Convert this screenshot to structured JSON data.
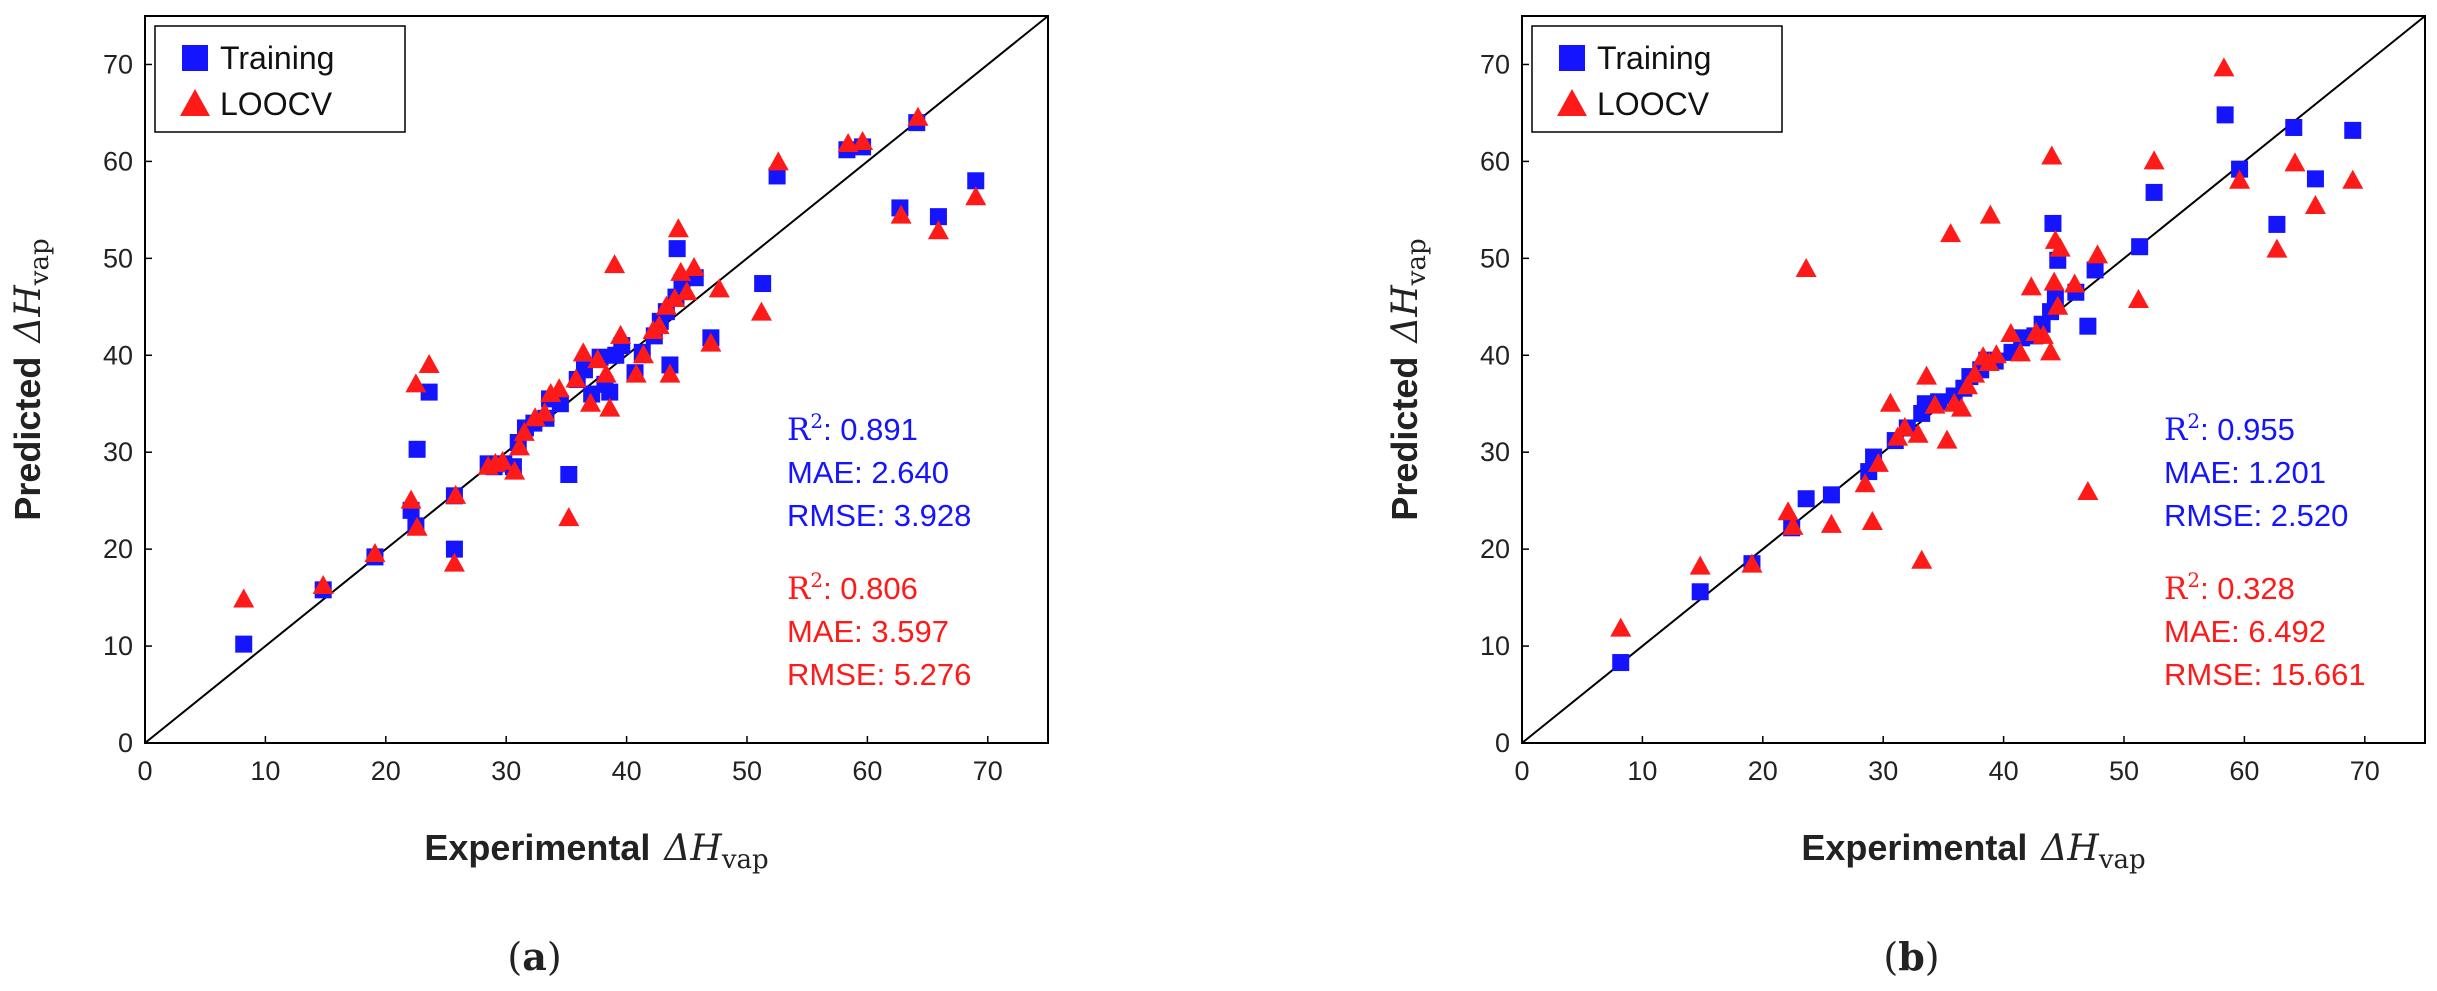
{
  "chart_data": [
    {
      "type": "scatter",
      "panel_label": {
        "open": "(",
        "letter": "a",
        "close": ")"
      },
      "xlabel": {
        "bold": "Experimental",
        "delta": "ΔH",
        "sub": "vap"
      },
      "ylabel": {
        "bold": "Predicted",
        "delta": "ΔH",
        "sub": "vap"
      },
      "xlim": [
        0,
        75
      ],
      "ylim": [
        0,
        75
      ],
      "xticks": [
        "0",
        "10",
        "20",
        "30",
        "40",
        "50",
        "60",
        "70"
      ],
      "yticks": [
        "0",
        "10",
        "20",
        "30",
        "40",
        "50",
        "60",
        "70"
      ],
      "diagonal_line": true,
      "grid": false,
      "legend_position": "top-left",
      "legend": [
        {
          "label": "Training",
          "marker": "square",
          "color": "#1414ff"
        },
        {
          "label": "LOOCV",
          "marker": "triangle",
          "color": "#ff1a1a"
        }
      ],
      "metrics": [
        {
          "color": "#1414ff",
          "r2": ": 0.891",
          "mae": "MAE: 2.640",
          "rmse": "RMSE: 3.928"
        },
        {
          "color": "#ff1a1a",
          "r2": ": 0.806",
          "mae": "MAE: 3.597",
          "rmse": "RMSE: 5.276"
        }
      ],
      "series": [
        {
          "name": "Training",
          "marker": "square",
          "color": "#1414ff",
          "points": [
            [
              8.2,
              10.2
            ],
            [
              14.8,
              15.8
            ],
            [
              19.1,
              19.2
            ],
            [
              22.1,
              24.0
            ],
            [
              22.6,
              30.3
            ],
            [
              22.5,
              22.4
            ],
            [
              23.6,
              36.2
            ],
            [
              25.7,
              20.0
            ],
            [
              25.7,
              25.5
            ],
            [
              28.5,
              28.8
            ],
            [
              29.0,
              28.5
            ],
            [
              29.8,
              28.8
            ],
            [
              30.6,
              28.5
            ],
            [
              31.0,
              31.0
            ],
            [
              31.6,
              32.5
            ],
            [
              32.3,
              33.0
            ],
            [
              33.3,
              33.5
            ],
            [
              33.6,
              35.5
            ],
            [
              34.5,
              35.0
            ],
            [
              35.2,
              27.7
            ],
            [
              35.9,
              37.5
            ],
            [
              36.5,
              38.5
            ],
            [
              37.1,
              36.0
            ],
            [
              37.8,
              39.8
            ],
            [
              38.2,
              37.0
            ],
            [
              38.6,
              36.2
            ],
            [
              39.1,
              40.0
            ],
            [
              39.6,
              41.0
            ],
            [
              40.7,
              38.2
            ],
            [
              41.3,
              40.3
            ],
            [
              42.3,
              42.0
            ],
            [
              42.8,
              43.5
            ],
            [
              43.3,
              44.5
            ],
            [
              43.6,
              39.0
            ],
            [
              44.1,
              46.0
            ],
            [
              44.2,
              51.0
            ],
            [
              44.6,
              47.5
            ],
            [
              45.7,
              48.0
            ],
            [
              47.0,
              41.8
            ],
            [
              51.3,
              47.4
            ],
            [
              52.5,
              58.5
            ],
            [
              58.3,
              61.2
            ],
            [
              59.6,
              61.5
            ],
            [
              62.7,
              55.2
            ],
            [
              64.1,
              64.0
            ],
            [
              65.9,
              54.3
            ],
            [
              69.0,
              58.0
            ]
          ]
        },
        {
          "name": "LOOCV",
          "marker": "triangle",
          "color": "#ff1a1a",
          "points": [
            [
              8.2,
              14.8
            ],
            [
              14.8,
              16.2
            ],
            [
              19.1,
              19.5
            ],
            [
              22.1,
              25.0
            ],
            [
              22.5,
              37.0
            ],
            [
              22.6,
              22.2
            ],
            [
              23.6,
              39.0
            ],
            [
              25.7,
              18.5
            ],
            [
              25.8,
              25.5
            ],
            [
              28.5,
              28.5
            ],
            [
              29.1,
              28.8
            ],
            [
              29.7,
              29.0
            ],
            [
              30.7,
              28.0
            ],
            [
              31.1,
              30.5
            ],
            [
              31.5,
              32.0
            ],
            [
              32.4,
              33.5
            ],
            [
              33.2,
              34.0
            ],
            [
              33.7,
              36.0
            ],
            [
              34.4,
              36.5
            ],
            [
              35.2,
              23.2
            ],
            [
              35.8,
              37.5
            ],
            [
              36.4,
              40.2
            ],
            [
              37.0,
              35.0
            ],
            [
              37.6,
              39.5
            ],
            [
              38.3,
              38.0
            ],
            [
              38.6,
              34.5
            ],
            [
              39.0,
              49.3
            ],
            [
              39.5,
              42.0
            ],
            [
              40.8,
              38.0
            ],
            [
              41.4,
              40.0
            ],
            [
              42.2,
              42.5
            ],
            [
              42.7,
              43.0
            ],
            [
              43.3,
              45.0
            ],
            [
              43.6,
              38.0
            ],
            [
              44.0,
              45.8
            ],
            [
              44.3,
              53.0
            ],
            [
              44.5,
              48.5
            ],
            [
              45.0,
              46.5
            ],
            [
              45.6,
              49.0
            ],
            [
              47.0,
              41.2
            ],
            [
              47.7,
              46.8
            ],
            [
              51.2,
              44.4
            ],
            [
              52.6,
              59.9
            ],
            [
              58.4,
              61.8
            ],
            [
              59.6,
              62.0
            ],
            [
              62.8,
              54.4
            ],
            [
              64.2,
              64.5
            ],
            [
              65.9,
              52.8
            ],
            [
              69.0,
              56.3
            ]
          ]
        }
      ]
    },
    {
      "type": "scatter",
      "panel_label": {
        "open": "(",
        "letter": "b",
        "close": ")"
      },
      "xlabel": {
        "bold": "Experimental",
        "delta": "ΔH",
        "sub": "vap"
      },
      "ylabel": {
        "bold": "Predicted",
        "delta": "ΔH",
        "sub": "vap"
      },
      "xlim": [
        0,
        75
      ],
      "ylim": [
        0,
        75
      ],
      "xticks": [
        "0",
        "10",
        "20",
        "30",
        "40",
        "50",
        "60",
        "70"
      ],
      "yticks": [
        "0",
        "10",
        "20",
        "30",
        "40",
        "50",
        "60",
        "70"
      ],
      "diagonal_line": true,
      "grid": false,
      "legend_position": "top-left",
      "legend": [
        {
          "label": "Training",
          "marker": "square",
          "color": "#1414ff"
        },
        {
          "label": "LOOCV",
          "marker": "triangle",
          "color": "#ff1a1a"
        }
      ],
      "metrics": [
        {
          "color": "#1414ff",
          "r2": ": 0.955",
          "mae": "MAE: 1.201",
          "rmse": "RMSE: 2.520"
        },
        {
          "color": "#ff1a1a",
          "r2": ": 0.328",
          "mae": "MAE: 6.492",
          "rmse": "RMSE: 15.661"
        }
      ],
      "series": [
        {
          "name": "Training",
          "marker": "square",
          "color": "#1414ff",
          "points": [
            [
              8.2,
              8.3
            ],
            [
              14.8,
              15.6
            ],
            [
              19.1,
              18.5
            ],
            [
              22.4,
              22.2
            ],
            [
              23.6,
              25.2
            ],
            [
              25.7,
              25.6
            ],
            [
              28.8,
              28.0
            ],
            [
              29.2,
              29.5
            ],
            [
              31.0,
              31.2
            ],
            [
              32.0,
              32.5
            ],
            [
              33.2,
              34.0
            ],
            [
              33.5,
              35.0
            ],
            [
              34.6,
              35.2
            ],
            [
              35.9,
              35.8
            ],
            [
              36.7,
              36.6
            ],
            [
              37.2,
              37.8
            ],
            [
              38.1,
              38.5
            ],
            [
              38.6,
              39.5
            ],
            [
              39.3,
              39.4
            ],
            [
              40.7,
              40.3
            ],
            [
              41.5,
              41.8
            ],
            [
              42.6,
              42.0
            ],
            [
              43.2,
              43.2
            ],
            [
              43.9,
              44.5
            ],
            [
              44.1,
              53.6
            ],
            [
              44.3,
              46.0
            ],
            [
              44.5,
              49.8
            ],
            [
              46.0,
              46.5
            ],
            [
              47.0,
              43.0
            ],
            [
              47.6,
              48.8
            ],
            [
              51.3,
              51.2
            ],
            [
              52.5,
              56.8
            ],
            [
              58.4,
              64.8
            ],
            [
              59.6,
              59.2
            ],
            [
              62.7,
              53.5
            ],
            [
              64.1,
              63.5
            ],
            [
              65.9,
              58.2
            ],
            [
              69.0,
              63.2
            ]
          ]
        },
        {
          "name": "LOOCV",
          "marker": "triangle",
          "color": "#ff1a1a",
          "points": [
            [
              8.2,
              11.8
            ],
            [
              14.8,
              18.2
            ],
            [
              19.1,
              18.4
            ],
            [
              22.1,
              23.8
            ],
            [
              22.5,
              22.3
            ],
            [
              23.6,
              48.9
            ],
            [
              25.7,
              22.5
            ],
            [
              28.5,
              26.7
            ],
            [
              29.1,
              22.8
            ],
            [
              29.6,
              28.8
            ],
            [
              30.6,
              35.0
            ],
            [
              31.2,
              31.5
            ],
            [
              31.8,
              32.5
            ],
            [
              32.9,
              31.8
            ],
            [
              33.2,
              18.8
            ],
            [
              33.6,
              37.8
            ],
            [
              34.3,
              34.8
            ],
            [
              35.3,
              31.2
            ],
            [
              35.6,
              52.5
            ],
            [
              35.9,
              35.0
            ],
            [
              36.5,
              34.5
            ],
            [
              37.0,
              36.8
            ],
            [
              37.6,
              38.0
            ],
            [
              38.3,
              39.8
            ],
            [
              38.8,
              39.2
            ],
            [
              38.9,
              54.4
            ],
            [
              39.4,
              40.0
            ],
            [
              40.6,
              42.2
            ],
            [
              41.4,
              40.2
            ],
            [
              42.3,
              47.0
            ],
            [
              42.7,
              42.3
            ],
            [
              43.3,
              42.0
            ],
            [
              43.9,
              40.3
            ],
            [
              44.0,
              60.5
            ],
            [
              44.2,
              47.5
            ],
            [
              44.3,
              51.8
            ],
            [
              44.5,
              45.0
            ],
            [
              44.7,
              51.0
            ],
            [
              45.9,
              47.3
            ],
            [
              47.0,
              25.9
            ],
            [
              47.8,
              50.3
            ],
            [
              51.2,
              45.7
            ],
            [
              52.5,
              60.0
            ],
            [
              58.3,
              69.6
            ],
            [
              59.6,
              58.0
            ],
            [
              62.7,
              50.9
            ],
            [
              64.2,
              59.8
            ],
            [
              65.9,
              55.4
            ],
            [
              69.0,
              58.0
            ]
          ]
        }
      ]
    }
  ]
}
